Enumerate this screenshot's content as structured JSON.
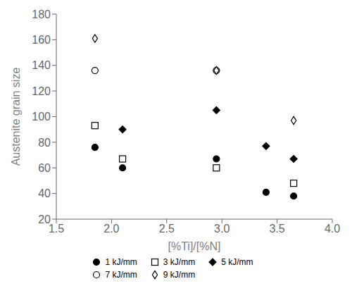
{
  "chart_data": {
    "type": "scatter",
    "title": "",
    "xlabel": "[%Ti]/[%N]",
    "ylabel": "Austenite grain size",
    "xlim": [
      1.5,
      4.0
    ],
    "ylim": [
      20,
      180
    ],
    "xticks": [
      1.5,
      {
        "value": 2,
        "label": "2.0"
      },
      2.5,
      {
        "value": 3,
        "label": "3.0"
      },
      3.5,
      {
        "value": 4,
        "label": "4.0"
      }
    ],
    "yticks": [
      20,
      40,
      60,
      80,
      100,
      120,
      140,
      160,
      180
    ],
    "legend": "bottom",
    "series": [
      {
        "name": "1 kJ/mm",
        "color": "black",
        "marker": "filled_circle",
        "x": [
          1.85,
          2.1,
          2.95,
          3.4,
          3.65
        ],
        "values": [
          76,
          60,
          67,
          41,
          38
        ]
      },
      {
        "name": "3 kJ/mm",
        "color": "black",
        "marker": "open_square",
        "x": [
          1.85,
          2.1,
          2.95,
          3.65
        ],
        "values": [
          93,
          67,
          60,
          48
        ]
      },
      {
        "name": "5 kJ/mm",
        "color": "black",
        "marker": "filled_diamond",
        "x": [
          2.1,
          2.95,
          3.4,
          3.65
        ],
        "values": [
          90,
          105,
          77,
          67
        ]
      },
      {
        "name": "7 kJ/mm",
        "color": "black",
        "marker": "open_circle",
        "x": [
          1.85,
          2.95
        ],
        "values": [
          136,
          136
        ]
      },
      {
        "name": "9 kJ/mm",
        "color": "black",
        "marker": "open_thin_diamond",
        "x": [
          1.85,
          2.95,
          3.65
        ],
        "values": [
          161,
          136,
          97
        ]
      }
    ]
  }
}
